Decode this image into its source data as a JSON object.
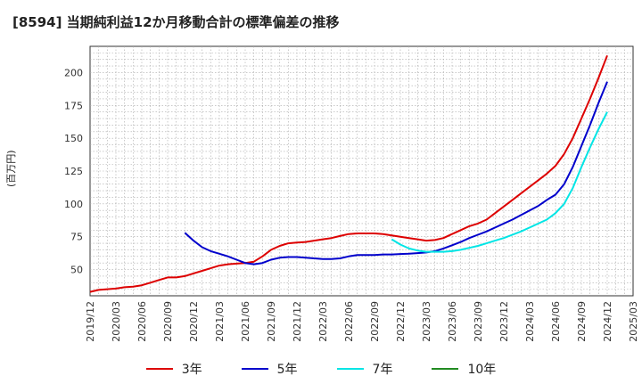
{
  "chart_data": {
    "type": "line",
    "title": "[8594]  当期純利益12か月移動合計の標準偏差の推移",
    "ylabel": "(百万円)",
    "xlabel": "",
    "ylim": [
      30,
      220
    ],
    "yticks": [
      50,
      75,
      100,
      125,
      150,
      175,
      200
    ],
    "xlim": [
      "2019-12",
      "2025-03"
    ],
    "xticks": [
      "2019/12",
      "2020/03",
      "2020/06",
      "2020/09",
      "2020/12",
      "2021/03",
      "2021/06",
      "2021/09",
      "2021/12",
      "2022/03",
      "2022/06",
      "2022/09",
      "2022/12",
      "2023/03",
      "2023/06",
      "2023/09",
      "2023/12",
      "2024/03",
      "2024/06",
      "2024/09",
      "2024/12",
      "2025/03"
    ],
    "grid": true,
    "legend_position": "bottom",
    "series": [
      {
        "name": "3年",
        "color": "#dd0000",
        "x": [
          "2019-12",
          "2020-01",
          "2020-02",
          "2020-03",
          "2020-04",
          "2020-05",
          "2020-06",
          "2020-07",
          "2020-08",
          "2020-09",
          "2020-10",
          "2020-11",
          "2020-12",
          "2021-01",
          "2021-02",
          "2021-03",
          "2021-04",
          "2021-05",
          "2021-06",
          "2021-07",
          "2021-08",
          "2021-09",
          "2021-10",
          "2021-11",
          "2021-12",
          "2022-01",
          "2022-02",
          "2022-03",
          "2022-04",
          "2022-05",
          "2022-06",
          "2022-07",
          "2022-08",
          "2022-09",
          "2022-10",
          "2022-11",
          "2022-12",
          "2023-01",
          "2023-02",
          "2023-03",
          "2023-04",
          "2023-05",
          "2023-06",
          "2023-07",
          "2023-08",
          "2023-09",
          "2023-10",
          "2023-11",
          "2023-12",
          "2024-01",
          "2024-02",
          "2024-03",
          "2024-04",
          "2024-05",
          "2024-06",
          "2024-07",
          "2024-08",
          "2024-09",
          "2024-10",
          "2024-11",
          "2024-12"
        ],
        "values": [
          33,
          34.5,
          35,
          35.5,
          36.5,
          37,
          38,
          40,
          42,
          44,
          44,
          45,
          47,
          49,
          51,
          53,
          54,
          54.5,
          55,
          56,
          60,
          65,
          68,
          70,
          70.5,
          71,
          72,
          73,
          74,
          75.5,
          77,
          77.5,
          77.5,
          77.5,
          77,
          76,
          75,
          74,
          73,
          72,
          72.5,
          74,
          77,
          80,
          83,
          85,
          88,
          93,
          98,
          103,
          108,
          113,
          118,
          123,
          129,
          138,
          150,
          165,
          180,
          196,
          213
        ]
      },
      {
        "name": "5年",
        "color": "#0000cc",
        "x": [
          "2020-11",
          "2020-12",
          "2021-01",
          "2021-02",
          "2021-03",
          "2021-04",
          "2021-05",
          "2021-06",
          "2021-07",
          "2021-08",
          "2021-09",
          "2021-10",
          "2021-11",
          "2021-12",
          "2022-01",
          "2022-02",
          "2022-03",
          "2022-04",
          "2022-05",
          "2022-06",
          "2022-07",
          "2022-08",
          "2022-09",
          "2022-10",
          "2022-11",
          "2022-12",
          "2023-01",
          "2023-02",
          "2023-03",
          "2023-04",
          "2023-05",
          "2023-06",
          "2023-07",
          "2023-08",
          "2023-09",
          "2023-10",
          "2023-11",
          "2023-12",
          "2024-01",
          "2024-02",
          "2024-03",
          "2024-04",
          "2024-05",
          "2024-06",
          "2024-07",
          "2024-08",
          "2024-09",
          "2024-10",
          "2024-11",
          "2024-12"
        ],
        "values": [
          78,
          72,
          67,
          64,
          62,
          60,
          57.5,
          55,
          54,
          55,
          57.5,
          59,
          59.5,
          59.5,
          59,
          58.5,
          58,
          58,
          58.5,
          60,
          61,
          61,
          61,
          61.5,
          61.5,
          61.8,
          62,
          62.5,
          63,
          64,
          66,
          68.5,
          71,
          74,
          76.5,
          79,
          82,
          85,
          88,
          91.5,
          95,
          98.5,
          103,
          107,
          115,
          128,
          144,
          160,
          177,
          193
        ]
      },
      {
        "name": "7年",
        "color": "#00e5e5",
        "x": [
          "2022-11",
          "2022-12",
          "2023-01",
          "2023-02",
          "2023-03",
          "2023-04",
          "2023-05",
          "2023-06",
          "2023-07",
          "2023-08",
          "2023-09",
          "2023-10",
          "2023-11",
          "2023-12",
          "2024-01",
          "2024-02",
          "2024-03",
          "2024-04",
          "2024-05",
          "2024-06",
          "2024-07",
          "2024-08",
          "2024-09",
          "2024-10",
          "2024-11",
          "2024-12"
        ],
        "values": [
          73,
          69,
          66,
          64.5,
          63.5,
          63.5,
          63.5,
          64,
          65,
          66.5,
          68,
          70,
          72,
          74,
          76.5,
          79,
          82,
          85,
          88,
          93,
          100,
          112,
          128,
          143,
          157,
          170
        ]
      },
      {
        "name": "10年",
        "color": "#228b22",
        "x": [],
        "values": []
      }
    ]
  }
}
